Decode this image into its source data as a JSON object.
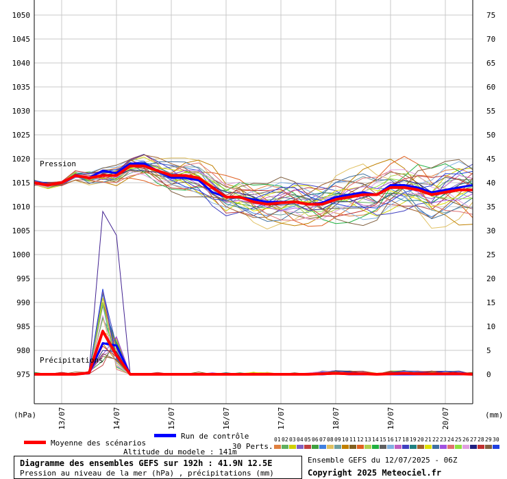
{
  "chart_data": {
    "type": "line",
    "title": "Diagramme des ensembles GEFS sur 192h : 41.9N 12.5E",
    "subtitle": "Pression au niveau de la mer (hPa) , précipitations (mm)",
    "left_axis": {
      "unit": "(hPa)",
      "range": [
        970,
        1052
      ],
      "ticks": [
        975,
        980,
        985,
        990,
        995,
        1000,
        1005,
        1010,
        1015,
        1020,
        1025,
        1030,
        1035,
        1040,
        1045,
        1050
      ]
    },
    "right_axis": {
      "unit": "(mm)",
      "range": [
        0,
        77
      ],
      "ticks": [
        0,
        5,
        10,
        15,
        20,
        25,
        30,
        35,
        40,
        45,
        50,
        55,
        60,
        65,
        70,
        75
      ]
    },
    "x_axis": {
      "unit": "hours",
      "range": [
        0,
        192
      ],
      "ticks": [
        {
          "h": 12,
          "label": "13/07"
        },
        {
          "h": 36,
          "label": "14/07"
        },
        {
          "h": 60,
          "label": "15/07"
        },
        {
          "h": 84,
          "label": "16/07"
        },
        {
          "h": 108,
          "label": "17/07"
        },
        {
          "h": 132,
          "label": "18/07"
        },
        {
          "h": 156,
          "label": "19/07"
        },
        {
          "h": 180,
          "label": "20/07"
        }
      ]
    },
    "grid": true,
    "section_labels": {
      "pressure": "Pression",
      "precip": "Précipitations"
    },
    "pressure_mean": {
      "name": "Moyenne des scénarios",
      "color": "#ff0000",
      "x": [
        0,
        6,
        12,
        18,
        24,
        30,
        36,
        42,
        48,
        54,
        60,
        66,
        72,
        78,
        84,
        90,
        96,
        102,
        108,
        114,
        120,
        126,
        132,
        138,
        144,
        150,
        156,
        162,
        168,
        174,
        180,
        186,
        192
      ],
      "y": [
        1015,
        1014.5,
        1015,
        1016.5,
        1016,
        1016.5,
        1016.5,
        1018.5,
        1018.5,
        1017.5,
        1016.5,
        1016.5,
        1016,
        1014,
        1012,
        1012,
        1011,
        1010.5,
        1010.8,
        1011,
        1010.5,
        1010.5,
        1011.5,
        1012,
        1012.5,
        1012.5,
        1014,
        1014,
        1013.5,
        1012.5,
        1013,
        1013.5,
        1013.5
      ]
    },
    "pressure_control": {
      "name": "Run de contrôle",
      "color": "#0000ff",
      "x": [
        0,
        6,
        12,
        18,
        24,
        30,
        36,
        42,
        48,
        54,
        60,
        66,
        72,
        78,
        84,
        90,
        96,
        102,
        108,
        114,
        120,
        126,
        132,
        138,
        144,
        150,
        156,
        162,
        168,
        174,
        180,
        186,
        192
      ],
      "y": [
        1015,
        1014.5,
        1015,
        1016.5,
        1016,
        1017.5,
        1017,
        1019,
        1019,
        1017.5,
        1016,
        1016,
        1015.5,
        1013,
        1012,
        1012,
        1011.5,
        1011,
        1011,
        1011,
        1010.5,
        1010.8,
        1012,
        1012.5,
        1013,
        1012.5,
        1014.5,
        1014.5,
        1014,
        1013,
        1013.5,
        1014,
        1014.5
      ]
    },
    "precip_mean": {
      "x": [
        0,
        6,
        12,
        18,
        24,
        30,
        36,
        42,
        48,
        54,
        60,
        66,
        72,
        78,
        84,
        90,
        96,
        102,
        108,
        114,
        120,
        126,
        132,
        138,
        144,
        150,
        156,
        162,
        168,
        174,
        180,
        186,
        192
      ],
      "y": [
        0,
        0,
        0,
        0,
        0.3,
        9,
        4,
        0,
        0,
        0,
        0,
        0,
        0,
        0,
        0,
        0,
        0,
        0,
        0,
        0,
        0,
        0.1,
        0.2,
        0.1,
        0.1,
        0,
        0.1,
        0.2,
        0.1,
        0.1,
        0.1,
        0.1,
        0
      ]
    },
    "precip_control": {
      "x": [
        0,
        6,
        12,
        18,
        24,
        30,
        36,
        42,
        48,
        54,
        60,
        66,
        72,
        78,
        84,
        90,
        96,
        102,
        108,
        114,
        120,
        126,
        132,
        138,
        144,
        150,
        156,
        162,
        168,
        174,
        180,
        186,
        192
      ],
      "y": [
        0,
        0,
        0,
        0,
        0.2,
        6.5,
        6,
        0,
        0,
        0,
        0,
        0,
        0,
        0,
        0,
        0,
        0,
        0,
        0,
        0,
        0,
        0,
        0.2,
        0,
        0,
        0,
        0,
        0,
        0,
        0,
        0,
        0,
        0
      ]
    },
    "precip_peak_member": {
      "x": [
        24,
        30,
        36,
        42
      ],
      "y": [
        0.5,
        34,
        29,
        0
      ]
    },
    "perturbations_label": "30 Perts.",
    "perturbation_ids": [
      "01",
      "02",
      "03",
      "04",
      "05",
      "06",
      "07",
      "08",
      "09",
      "10",
      "11",
      "12",
      "13",
      "14",
      "15",
      "16",
      "17",
      "18",
      "19",
      "20",
      "21",
      "22",
      "23",
      "24",
      "25",
      "26",
      "27",
      "28",
      "29",
      "30"
    ],
    "perturbation_colors": [
      "#e08040",
      "#60b060",
      "#d0d000",
      "#8060c0",
      "#c04040",
      "#40a040",
      "#4080e0",
      "#e0c060",
      "#70a0a0",
      "#c08000",
      "#806020",
      "#e06020",
      "#b0d050",
      "#20b040",
      "#606060",
      "#80b0e0",
      "#c060c0",
      "#4040c0",
      "#208080",
      "#a06030",
      "#e0e000",
      "#4070a0",
      "#a050e0",
      "#e07070",
      "#90e040",
      "#e0a0e0",
      "#202080",
      "#c03030",
      "#806040",
      "#2040e0"
    ]
  },
  "legend": {
    "mean_label": "Moyenne des scénarios",
    "control_label": "Run de contrôle",
    "mean_color": "#ff0000",
    "control_color": "#0000ff"
  },
  "altitude": "Altitude du modele : 141m",
  "infobox": {
    "line1": "Diagramme des ensembles GEFS sur 192h : 41.9N 12.5E",
    "line2": "Pression au niveau de la mer (hPa) , précipitations (mm)"
  },
  "run_info": "Ensemble GEFS du 12/07/2025 - 06Z",
  "copyright": "Copyright 2025 Meteociel.fr"
}
